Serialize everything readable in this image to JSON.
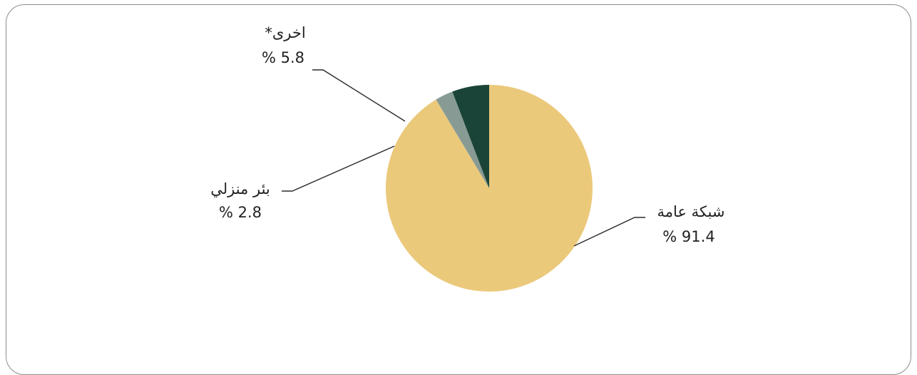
{
  "chart_data": {
    "type": "pie",
    "title": "",
    "slices": [
      {
        "name": "شبكة عامة",
        "value": 91.4,
        "value_label": "% 91.4",
        "color": "#ebc97b"
      },
      {
        "name": "بئر منزلي",
        "value": 2.8,
        "value_label": "% 2.8",
        "color": "#879b94"
      },
      {
        "name": "اخرى*",
        "value": 5.8,
        "value_label": "% 5.8",
        "color": "#1b4438"
      }
    ],
    "start_angle_deg": 0,
    "direction": "clockwise-from-top",
    "legend": "none",
    "labels": "outside-with-leader-lines"
  }
}
